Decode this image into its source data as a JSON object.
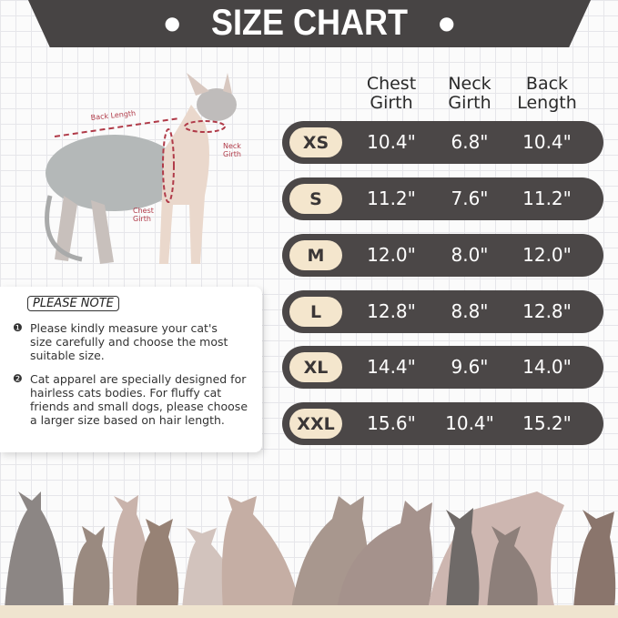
{
  "title": "SIZE CHART",
  "columns": [
    "Chest\nGirth",
    "Neck\nGirth",
    "Back\nLength"
  ],
  "column_lines": [
    [
      "Chest",
      "Girth"
    ],
    [
      "Neck",
      "Girth"
    ],
    [
      "Back",
      "Length"
    ]
  ],
  "rows": [
    {
      "size": "XS",
      "chest": "10.4\"",
      "neck": "6.8\"",
      "back": "10.4\""
    },
    {
      "size": "S",
      "chest": "11.2\"",
      "neck": "7.6\"",
      "back": "11.2\""
    },
    {
      "size": "M",
      "chest": "12.0\"",
      "neck": "8.0\"",
      "back": "12.0\""
    },
    {
      "size": "L",
      "chest": "12.8\"",
      "neck": "8.8\"",
      "back": "12.8\""
    },
    {
      "size": "XL",
      "chest": "14.4\"",
      "neck": "9.6\"",
      "back": "14.0\""
    },
    {
      "size": "XXL",
      "chest": "15.6\"",
      "neck": "10.4\"",
      "back": "15.2\""
    }
  ],
  "diagram": {
    "back_length": "Back Length",
    "neck_girth": [
      "Neck",
      "Girth"
    ],
    "chest_girth": [
      "Chest",
      "Girth"
    ]
  },
  "note": {
    "title": "PLEASE NOTE",
    "items": [
      {
        "num": "❶",
        "text": "Please kindly measure your cat's size carefully and choose the most suitable size."
      },
      {
        "num": "❷",
        "text": "Cat apparel are specially designed for hairless cats bodies. For fluffy cat friends and small dogs, please choose a larger size based on hair length."
      }
    ]
  },
  "colors": {
    "dark": "#4b4747",
    "pill": "#f4e6cd",
    "measure": "#b03a48",
    "floor": "#efe4cf"
  }
}
